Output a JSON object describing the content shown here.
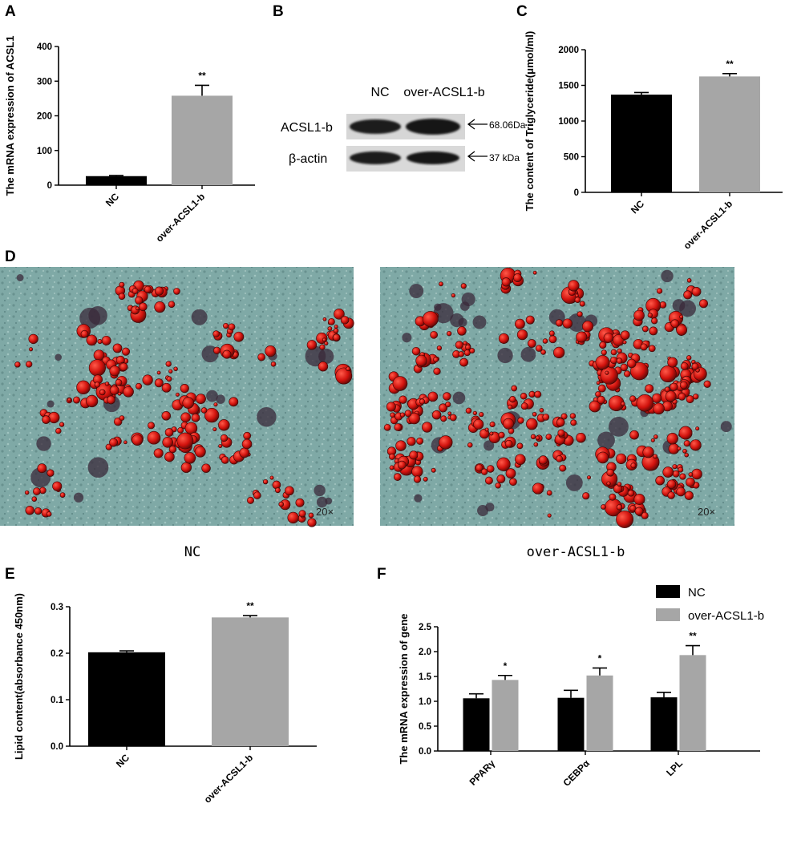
{
  "colors": {
    "nc": "#000000",
    "over": "#a6a6a6",
    "bg": "#ffffff"
  },
  "panels": {
    "A": {
      "letter": "A"
    },
    "B": {
      "letter": "B"
    },
    "C": {
      "letter": "C"
    },
    "D": {
      "letter": "D"
    },
    "E": {
      "letter": "E"
    },
    "F": {
      "letter": "F"
    }
  },
  "blot": {
    "col_labels": [
      "NC",
      "over-ACSL1-b"
    ],
    "rows": [
      {
        "label": "ACSL1-b",
        "mw": "68.06Da",
        "arrow": "arrow-left-icon"
      },
      {
        "label": "β-actin",
        "mw": "37 kDa",
        "arrow": "arrow-left-icon"
      }
    ]
  },
  "micrographs": {
    "panels": [
      {
        "caption": "NC",
        "magnification": "20×"
      },
      {
        "caption": "over-ACSL1-b",
        "magnification": "20×"
      }
    ]
  },
  "chart_data": [
    {
      "panel": "A",
      "type": "bar",
      "categories": [
        "NC",
        "over-ACSL1-b"
      ],
      "values": [
        26,
        258
      ],
      "errors": [
        2,
        30
      ],
      "significance": [
        "",
        "**"
      ],
      "ylabel": "The mRNA expression of ACSL1",
      "ylim": [
        0,
        400
      ],
      "yticks": [
        0,
        100,
        200,
        300,
        400
      ],
      "grid": false
    },
    {
      "panel": "C",
      "type": "bar",
      "categories": [
        "NC",
        "over-ACSL1-b"
      ],
      "values": [
        1370,
        1625
      ],
      "errors": [
        30,
        40
      ],
      "significance": [
        "",
        "**"
      ],
      "ylabel": "The content of Triglyceride(μmol/ml)",
      "ylim": [
        0,
        2000
      ],
      "yticks": [
        0,
        500,
        1000,
        1500,
        2000
      ],
      "grid": false
    },
    {
      "panel": "E",
      "type": "bar",
      "categories": [
        "NC",
        "over-ACSL1-b"
      ],
      "values": [
        0.202,
        0.277
      ],
      "errors": [
        0.003,
        0.004
      ],
      "significance": [
        "",
        "**"
      ],
      "ylabel": "Lipid content(absorbance 450nm)",
      "ylim": [
        0,
        0.3
      ],
      "yticks": [
        0.0,
        0.1,
        0.2,
        0.3
      ],
      "grid": false
    },
    {
      "panel": "F",
      "type": "bar",
      "categories": [
        "PPARγ",
        "CEBPα",
        "LPL"
      ],
      "series": [
        {
          "name": "NC",
          "values": [
            1.06,
            1.07,
            1.08
          ],
          "errors": [
            0.09,
            0.15,
            0.1
          ]
        },
        {
          "name": "over-ACSL1-b",
          "values": [
            1.43,
            1.52,
            1.93
          ],
          "errors": [
            0.09,
            0.15,
            0.19
          ]
        }
      ],
      "significance": [
        "*",
        "*",
        "**"
      ],
      "ylabel": "The mRNA expression of gene",
      "ylim": [
        0,
        2.5
      ],
      "yticks": [
        0.0,
        0.5,
        1.0,
        1.5,
        2.0,
        2.5
      ],
      "legend": "top-right",
      "grid": false
    }
  ]
}
